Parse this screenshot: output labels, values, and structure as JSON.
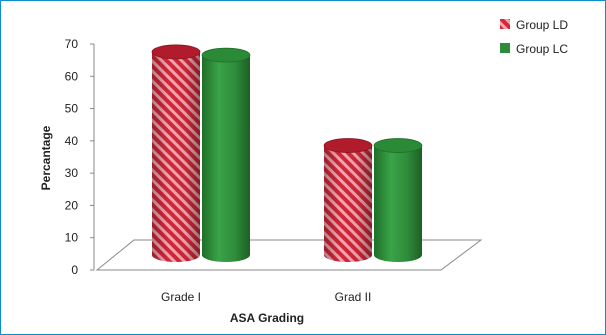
{
  "chart_data": {
    "type": "bar",
    "categories": [
      "Grade I",
      "Grad II"
    ],
    "series": [
      {
        "name": "Group LD",
        "values": [
          66,
          37
        ],
        "color": "#cc2233",
        "pattern": "diagonal-hatch"
      },
      {
        "name": "Group LC",
        "values": [
          65,
          37
        ],
        "color": "#2e8b3a",
        "pattern": "solid"
      }
    ],
    "title": "",
    "xlabel": "ASA Grading",
    "ylabel": "Percantage",
    "ylim": [
      0,
      70
    ],
    "yticks": [
      "0",
      "10",
      "20",
      "30",
      "40",
      "50",
      "60",
      "70"
    ],
    "grid": false,
    "legend": "top-right",
    "style": "3d-cylinder"
  }
}
